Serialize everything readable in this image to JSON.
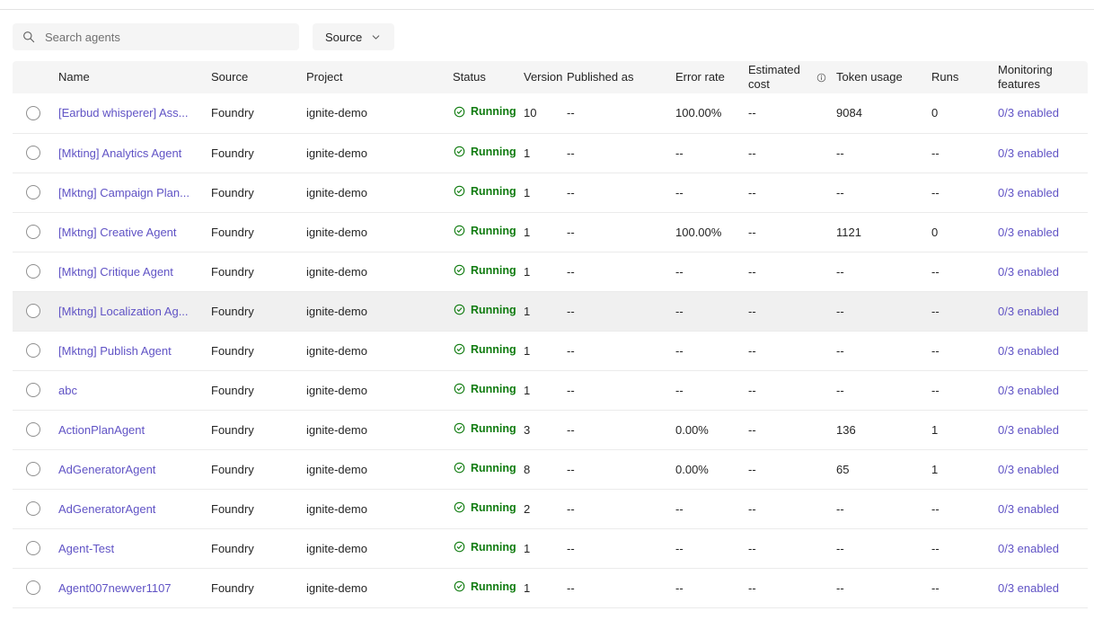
{
  "toolbar": {
    "search_placeholder": "Search agents",
    "source_button_label": "Source",
    "icons": {
      "search": "search-icon",
      "dropdown": "chevron-down-icon"
    }
  },
  "table": {
    "columns": {
      "name": "Name",
      "source": "Source",
      "project": "Project",
      "status": "Status",
      "version": "Version",
      "published_as": "Published as",
      "error_rate": "Error rate",
      "estimated_cost": "Estimated cost",
      "token_usage": "Token usage",
      "runs": "Runs",
      "monitoring": "Monitoring features"
    },
    "estimated_cost_info_icon": "info-icon",
    "status_icon": "check-circle-icon",
    "highlighted_row_index": 5,
    "rows": [
      {
        "name": "[Earbud whisperer] Ass...",
        "source": "Foundry",
        "project": "ignite-demo",
        "status": "Running",
        "version": "10",
        "published_as": "--",
        "error_rate": "100.00%",
        "estimated_cost": "--",
        "token_usage": "9084",
        "runs": "0",
        "monitoring": "0/3 enabled"
      },
      {
        "name": "[Mkting] Analytics Agent",
        "source": "Foundry",
        "project": "ignite-demo",
        "status": "Running",
        "version": "1",
        "published_as": "--",
        "error_rate": "--",
        "estimated_cost": "--",
        "token_usage": "--",
        "runs": "--",
        "monitoring": "0/3 enabled"
      },
      {
        "name": "[Mktng] Campaign Plan...",
        "source": "Foundry",
        "project": "ignite-demo",
        "status": "Running",
        "version": "1",
        "published_as": "--",
        "error_rate": "--",
        "estimated_cost": "--",
        "token_usage": "--",
        "runs": "--",
        "monitoring": "0/3 enabled"
      },
      {
        "name": "[Mktng] Creative Agent",
        "source": "Foundry",
        "project": "ignite-demo",
        "status": "Running",
        "version": "1",
        "published_as": "--",
        "error_rate": "100.00%",
        "estimated_cost": "--",
        "token_usage": "1121",
        "runs": "0",
        "monitoring": "0/3 enabled"
      },
      {
        "name": "[Mktng] Critique Agent",
        "source": "Foundry",
        "project": "ignite-demo",
        "status": "Running",
        "version": "1",
        "published_as": "--",
        "error_rate": "--",
        "estimated_cost": "--",
        "token_usage": "--",
        "runs": "--",
        "monitoring": "0/3 enabled"
      },
      {
        "name": "[Mktng] Localization Ag...",
        "source": "Foundry",
        "project": "ignite-demo",
        "status": "Running",
        "version": "1",
        "published_as": "--",
        "error_rate": "--",
        "estimated_cost": "--",
        "token_usage": "--",
        "runs": "--",
        "monitoring": "0/3 enabled"
      },
      {
        "name": "[Mktng] Publish Agent",
        "source": "Foundry",
        "project": "ignite-demo",
        "status": "Running",
        "version": "1",
        "published_as": "--",
        "error_rate": "--",
        "estimated_cost": "--",
        "token_usage": "--",
        "runs": "--",
        "monitoring": "0/3 enabled"
      },
      {
        "name": "abc",
        "source": "Foundry",
        "project": "ignite-demo",
        "status": "Running",
        "version": "1",
        "published_as": "--",
        "error_rate": "--",
        "estimated_cost": "--",
        "token_usage": "--",
        "runs": "--",
        "monitoring": "0/3 enabled"
      },
      {
        "name": "ActionPlanAgent",
        "source": "Foundry",
        "project": "ignite-demo",
        "status": "Running",
        "version": "3",
        "published_as": "--",
        "error_rate": "0.00%",
        "estimated_cost": "--",
        "token_usage": "136",
        "runs": "1",
        "monitoring": "0/3 enabled"
      },
      {
        "name": "AdGeneratorAgent",
        "source": "Foundry",
        "project": "ignite-demo",
        "status": "Running",
        "version": "8",
        "published_as": "--",
        "error_rate": "0.00%",
        "estimated_cost": "--",
        "token_usage": "65",
        "runs": "1",
        "monitoring": "0/3 enabled"
      },
      {
        "name": "AdGeneratorAgent",
        "source": "Foundry",
        "project": "ignite-demo",
        "status": "Running",
        "version": "2",
        "published_as": "--",
        "error_rate": "--",
        "estimated_cost": "--",
        "token_usage": "--",
        "runs": "--",
        "monitoring": "0/3 enabled"
      },
      {
        "name": "Agent-Test",
        "source": "Foundry",
        "project": "ignite-demo",
        "status": "Running",
        "version": "1",
        "published_as": "--",
        "error_rate": "--",
        "estimated_cost": "--",
        "token_usage": "--",
        "runs": "--",
        "monitoring": "0/3 enabled"
      },
      {
        "name": "Agent007newver1107",
        "source": "Foundry",
        "project": "ignite-demo",
        "status": "Running",
        "version": "1",
        "published_as": "--",
        "error_rate": "--",
        "estimated_cost": "--",
        "token_usage": "--",
        "runs": "--",
        "monitoring": "0/3 enabled"
      }
    ]
  },
  "colors": {
    "link": "#6053c5",
    "status_running": "#0f7b0f",
    "header_bg": "#f5f5f5",
    "row_hover_bg": "#f0f0f0",
    "text": "#242424",
    "muted": "#707070"
  }
}
